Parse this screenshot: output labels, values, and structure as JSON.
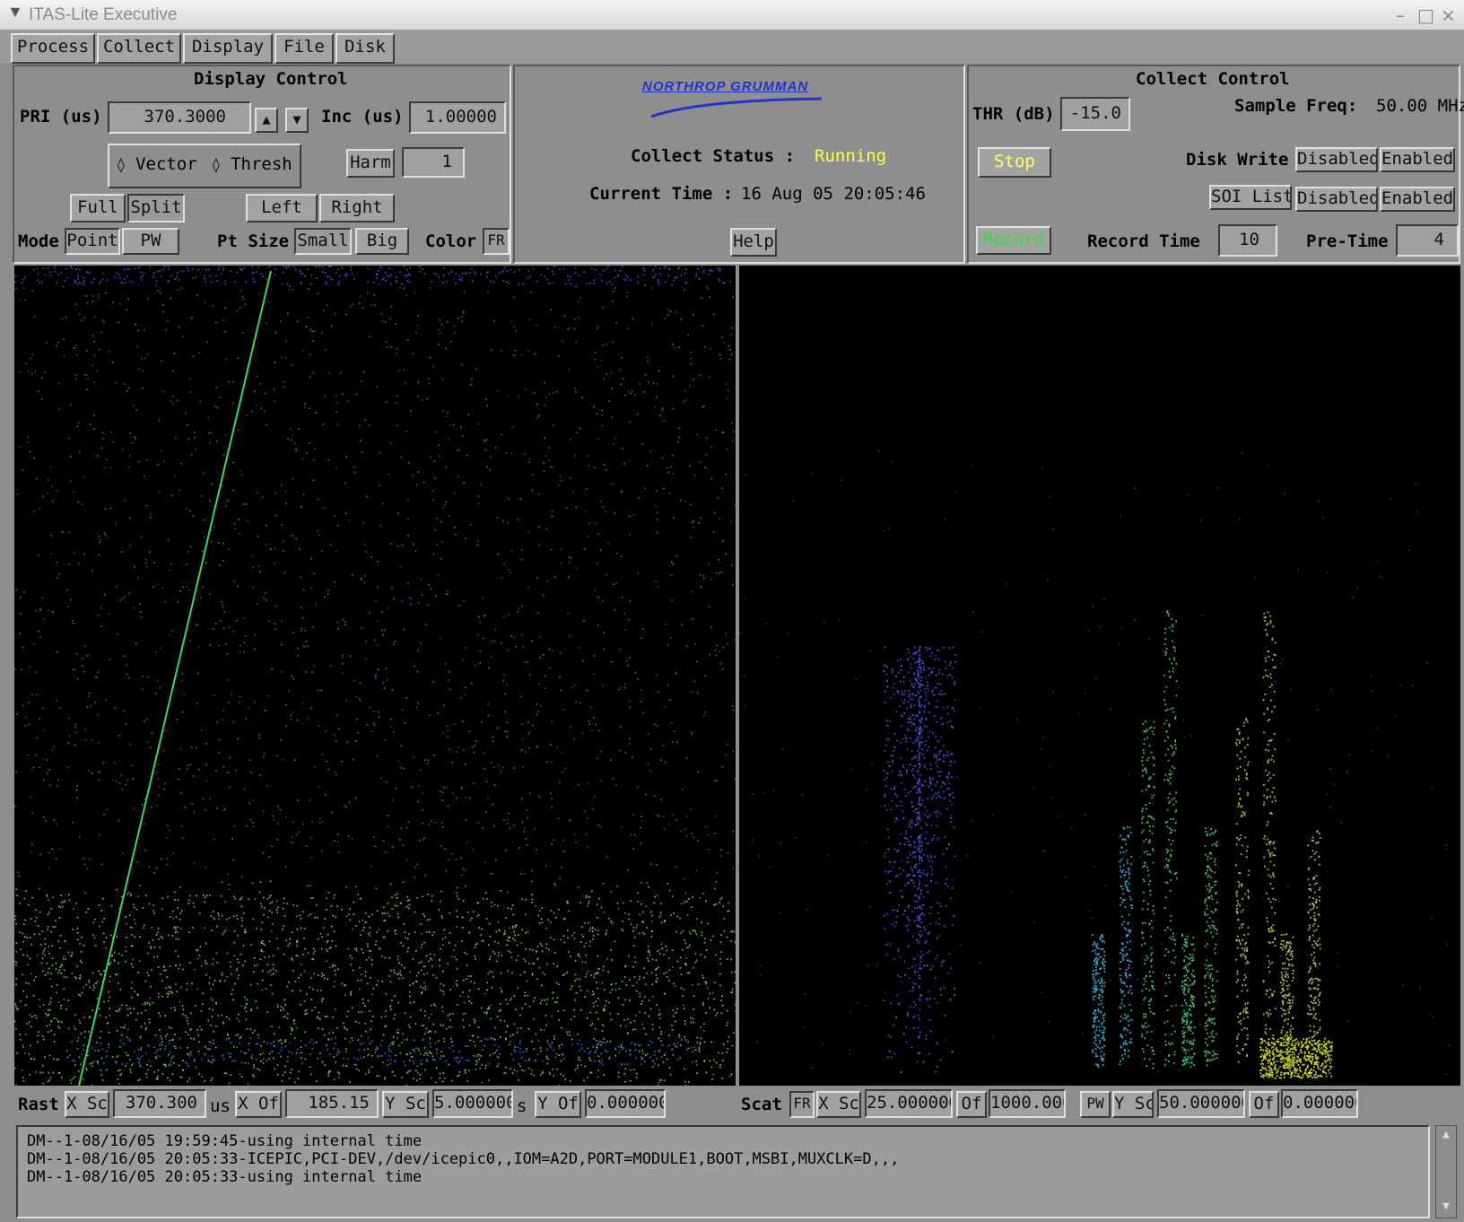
{
  "window": {
    "title": "ITAS-Lite Executive"
  },
  "tabs": [
    "Process",
    "Collect",
    "Display",
    "File",
    "Disk"
  ],
  "display_control": {
    "title": "Display Control",
    "pri_label": "PRI (us)",
    "pri_value": "370.3000",
    "inc_label": "Inc (us)",
    "inc_value": "1.00000",
    "vector_label": "Vector",
    "thresh_label": "Thresh",
    "harm_label": "Harm",
    "harm_value": "1",
    "full_label": "Full",
    "split_label": "Split",
    "left_label": "Left",
    "right_label": "Right",
    "mode_label": "Mode",
    "point_label": "Point",
    "pw_label": "PW",
    "pt_size_label": "Pt Size",
    "small_label": "Small",
    "big_label": "Big",
    "color_label": "Color",
    "fr_label": "FR"
  },
  "center": {
    "logo_text": "NORTHROP GRUMMAN",
    "collect_status_label": "Collect Status :",
    "collect_status_value": "Running",
    "current_time_label": "Current Time :",
    "current_time_value": "16 Aug 05 20:05:46",
    "help_label": "Help"
  },
  "collect_control": {
    "title": "Collect Control",
    "thr_label": "THR (dB)",
    "thr_value": "-15.0",
    "sample_freq_label": "Sample Freq:",
    "sample_freq_value": "50.00 MHz",
    "stop_label": "Stop",
    "disk_write_label": "Disk Write",
    "disabled_label": "Disabled",
    "enabled_label": "Enabled",
    "soi_list_label": "SOI List",
    "record_label": "Record",
    "record_time_label": "Record Time",
    "record_time_value": "10",
    "pre_time_label": "Pre-Time",
    "pre_time_value": "4"
  },
  "raster_bar": {
    "rast_label": "Rast",
    "xsc_label": "X Sc",
    "xsc_value": "370.300",
    "xsc_unit": "us",
    "xof_label": "X Of",
    "xof_value": "185.15",
    "ysc_label": "Y Sc",
    "ysc_value": "5.000000",
    "ysc_unit": "s",
    "yof_label": "Y Of",
    "yof_value": "0.000000"
  },
  "scatter_bar": {
    "scat_label": "Scat",
    "fr_label": "FR",
    "xsc_label": "X Sc",
    "xsc_value": "25.000000",
    "of_label": "Of",
    "xof_value": "1000.000",
    "pw_label": "PW",
    "ysc_label": "Y Sc",
    "ysc_value": "50.000000",
    "yof_value": "0.000000"
  },
  "console": {
    "lines": [
      "DM--1-08/16/05 19:59:45-using internal time",
      "DM--1-08/16/05 20:05:33-ICEPIC,PCI-DEV,/dev/icepic0,,IOM=A2D,PORT=MODULE1,BOOT,MSBI,MUXCLK=D,,,",
      "DM--1-08/16/05 20:05:33-using internal time"
    ]
  },
  "colors": {
    "running": "#ffff44",
    "record": "#33dd33",
    "stop_text": "#ffff66",
    "logo": "#2233cc"
  }
}
